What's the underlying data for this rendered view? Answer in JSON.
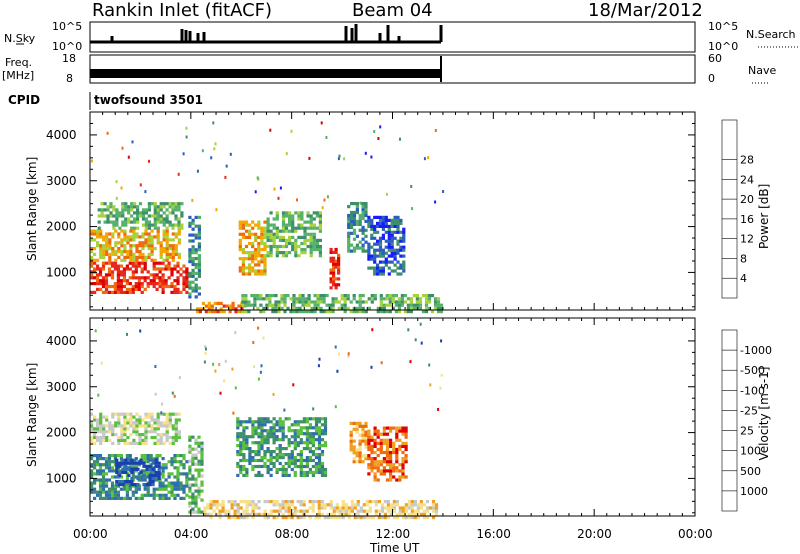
{
  "header": {
    "title": "Rankin Inlet (fitACF)",
    "beam": "Beam 04",
    "date": "18/Mar/2012"
  },
  "strips": {
    "nsky_label": "N.Sky",
    "nsky_ticks": [
      "10^5",
      "10^0"
    ],
    "nsearch_label": "N.Search",
    "freq_label": "Freq.",
    "freq_unit": "[MHz]",
    "freq_ticks": [
      "18",
      "8"
    ],
    "nave_ticks": [
      "60",
      "0"
    ],
    "nave_label": "Nave",
    "cpid_label": "CPID",
    "cpid_value": "twofsound 3501"
  },
  "chart_data": [
    {
      "type": "heatmap",
      "name": "power",
      "ylabel": "Slant Range [km]",
      "ylim": [
        180,
        4500
      ],
      "yticks": [
        "1000",
        "2000",
        "3000",
        "4000"
      ],
      "xlabel": "Time UT",
      "xlim_hours": [
        0,
        24
      ],
      "colorbar_label": "Power [dB]",
      "colorbar_ticks": [
        "4",
        "8",
        "12",
        "16",
        "20",
        "24",
        "28"
      ],
      "colorbar_colors": [
        "#1a1aff",
        "#2a5fbf",
        "#3c8f6a",
        "#56b26a",
        "#a6d23c",
        "#f4a700",
        "#f06a10",
        "#e8281e",
        "#e00000"
      ],
      "blobs": [
        {
          "t0": 0.0,
          "t1": 3.9,
          "r0": 600,
          "r1": 1300,
          "level": 7
        },
        {
          "t0": 0.0,
          "t1": 3.6,
          "r0": 1300,
          "r1": 2000,
          "level": 5
        },
        {
          "t0": 0.3,
          "t1": 3.7,
          "r0": 2000,
          "r1": 2600,
          "level": 3
        },
        {
          "t0": 3.9,
          "t1": 4.4,
          "r0": 500,
          "r1": 2300,
          "level": 2
        },
        {
          "t0": 4.2,
          "t1": 6.2,
          "r0": 180,
          "r1": 420,
          "level": 6
        },
        {
          "t0": 5.9,
          "t1": 7.0,
          "r0": 1000,
          "r1": 2200,
          "level": 5
        },
        {
          "t0": 7.0,
          "t1": 9.2,
          "r0": 1400,
          "r1": 2400,
          "level": 3
        },
        {
          "t0": 9.5,
          "t1": 9.9,
          "r0": 700,
          "r1": 1600,
          "level": 7
        },
        {
          "t0": 10.2,
          "t1": 11.0,
          "r0": 1500,
          "r1": 2600,
          "level": 2
        },
        {
          "t0": 11.0,
          "t1": 12.5,
          "r0": 1000,
          "r1": 2300,
          "level": 1
        },
        {
          "t0": 6.0,
          "t1": 14.0,
          "r0": 180,
          "r1": 600,
          "level": 3
        }
      ]
    },
    {
      "type": "heatmap",
      "name": "velocity",
      "ylabel": "Slant Range [km]",
      "ylim": [
        180,
        4500
      ],
      "yticks": [
        "1000",
        "2000",
        "3000",
        "4000"
      ],
      "xlabel": "Time UT",
      "xtick_labels": [
        "00:00",
        "04:00",
        "08:00",
        "12:00",
        "16:00",
        "20:00",
        "00:00"
      ],
      "colorbar_label": "Velocity [m s-1]",
      "colorbar_ticks": [
        "1000",
        "500",
        "100",
        "25",
        "-25",
        "-100",
        "-500",
        "-1000"
      ],
      "colorbar_colors": [
        "#1a3fb0",
        "#2f6fb0",
        "#3c8f6a",
        "#59c23a",
        "#c8c8c8",
        "#f6e08a",
        "#f0a020",
        "#f06a10",
        "#e00000"
      ],
      "blobs": [
        {
          "t0": 0.0,
          "t1": 3.9,
          "r0": 600,
          "r1": 1600,
          "level": 2
        },
        {
          "t0": 1.0,
          "t1": 2.8,
          "r0": 900,
          "r1": 1500,
          "level": 0
        },
        {
          "t0": 0.0,
          "t1": 3.6,
          "r0": 1800,
          "r1": 2500,
          "level": 4
        },
        {
          "t0": 5.8,
          "t1": 9.4,
          "r0": 1100,
          "r1": 2400,
          "level": 2
        },
        {
          "t0": 10.3,
          "t1": 11.0,
          "r0": 1400,
          "r1": 2300,
          "level": 6
        },
        {
          "t0": 11.0,
          "t1": 12.6,
          "r0": 1000,
          "r1": 2200,
          "level": 7
        },
        {
          "t0": 3.9,
          "t1": 4.5,
          "r0": 300,
          "r1": 2000,
          "level": 3
        },
        {
          "t0": 4.5,
          "t1": 13.8,
          "r0": 180,
          "r1": 600,
          "level": 5
        }
      ]
    }
  ]
}
